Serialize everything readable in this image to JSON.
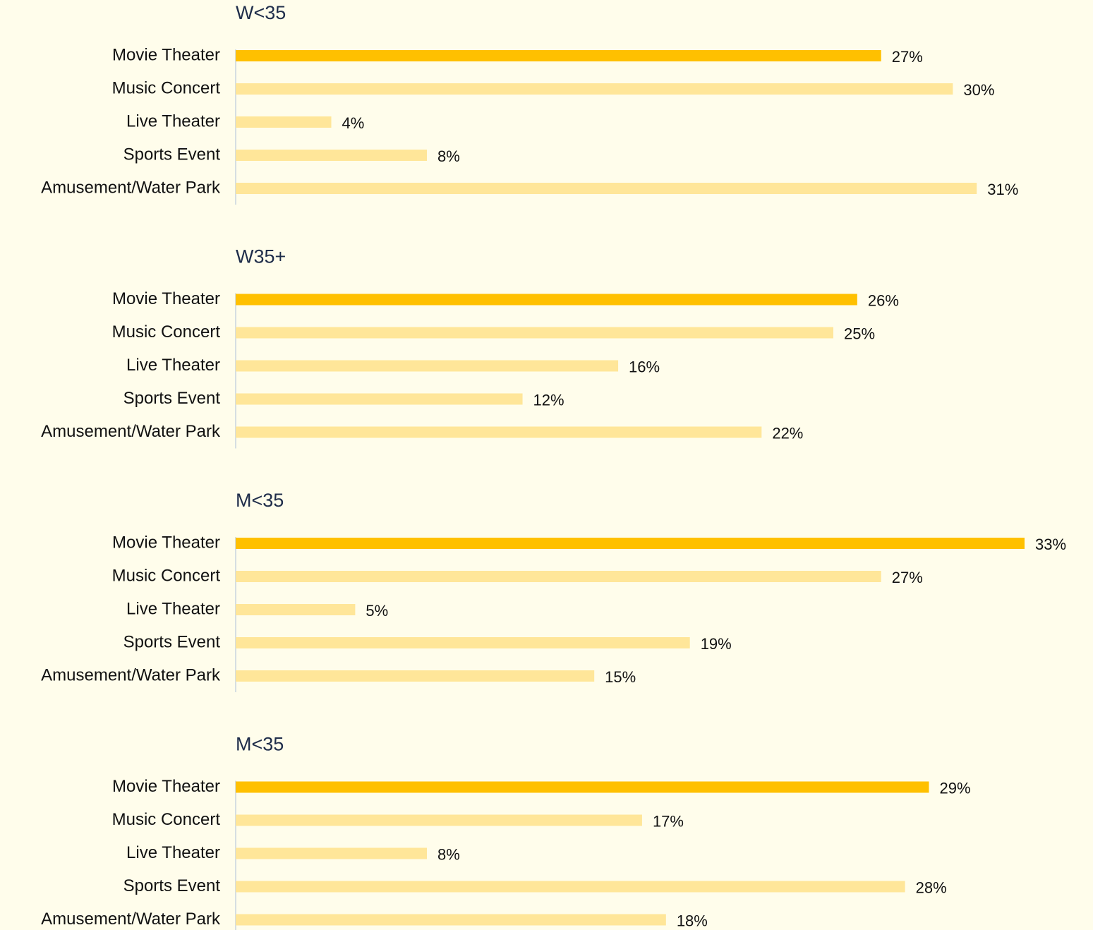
{
  "chart_data": [
    {
      "type": "bar",
      "orientation": "horizontal",
      "title": "W<35",
      "categories": [
        "Movie Theater",
        "Music Concert",
        "Live Theater",
        "Sports Event",
        "Amusement/Water Park"
      ],
      "values": [
        27,
        30,
        4,
        8,
        31
      ],
      "value_labels": [
        "27%",
        "30%",
        "4%",
        "8%",
        "31%"
      ],
      "colors": [
        "#FFC000",
        "#FFE699",
        "#FFE699",
        "#FFE699",
        "#FFE699"
      ],
      "xlim": [
        0,
        33
      ]
    },
    {
      "type": "bar",
      "orientation": "horizontal",
      "title": "W35+",
      "categories": [
        "Movie Theater",
        "Music Concert",
        "Live Theater",
        "Sports Event",
        "Amusement/Water Park"
      ],
      "values": [
        26,
        25,
        16,
        12,
        22
      ],
      "value_labels": [
        "26%",
        "25%",
        "16%",
        "12%",
        "22%"
      ],
      "colors": [
        "#FFC000",
        "#FFE699",
        "#FFE699",
        "#FFE699",
        "#FFE699"
      ],
      "xlim": [
        0,
        33
      ]
    },
    {
      "type": "bar",
      "orientation": "horizontal",
      "title": "M<35",
      "categories": [
        "Movie Theater",
        "Music Concert",
        "Live Theater",
        "Sports Event",
        "Amusement/Water Park"
      ],
      "values": [
        33,
        27,
        5,
        19,
        15
      ],
      "value_labels": [
        "33%",
        "27%",
        "5%",
        "19%",
        "15%"
      ],
      "colors": [
        "#FFC000",
        "#FFE699",
        "#FFE699",
        "#FFE699",
        "#FFE699"
      ],
      "xlim": [
        0,
        33
      ]
    },
    {
      "type": "bar",
      "orientation": "horizontal",
      "title": "M<35",
      "categories": [
        "Movie Theater",
        "Music Concert",
        "Live Theater",
        "Sports Event",
        "Amusement/Water Park"
      ],
      "values": [
        29,
        17,
        8,
        28,
        18
      ],
      "value_labels": [
        "29%",
        "17%",
        "8%",
        "28%",
        "18%"
      ],
      "colors": [
        "#FFC000",
        "#FFE699",
        "#FFE699",
        "#FFE699",
        "#FFE699"
      ],
      "xlim": [
        0,
        33
      ]
    }
  ]
}
